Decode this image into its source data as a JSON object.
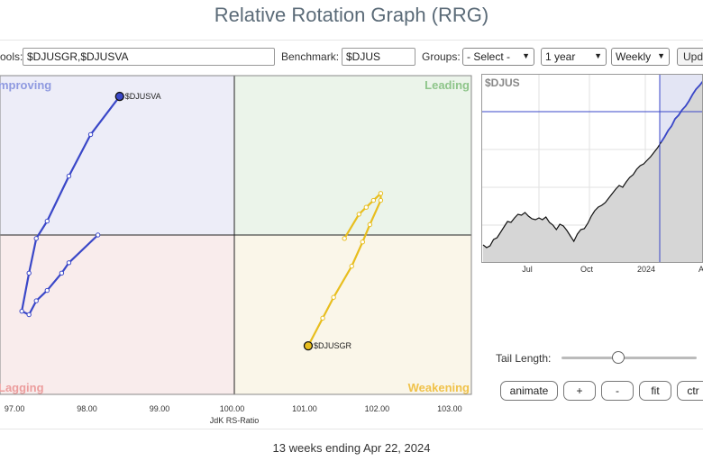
{
  "title": "Relative Rotation Graph (RRG)",
  "toolbar": {
    "symbols_label": "ools:",
    "symbols_value": "$DJUSGR,$DJUSVA",
    "benchmark_label": "Benchmark:",
    "benchmark_value": "$DJUS",
    "groups_label": "Groups:",
    "groups_value": "- Select -",
    "period_value": "1 year",
    "frequency_value": "Weekly",
    "update_label": "Upd"
  },
  "chart_data": [
    {
      "type": "scatter",
      "title": "",
      "xlabel": "JdK RS-Ratio",
      "ylabel": "",
      "xlim": [
        96.8,
        103.3
      ],
      "ylim": [
        97.7,
        102.3
      ],
      "x_ticks": [
        "97.00",
        "98.00",
        "99.00",
        "100.00",
        "101.00",
        "102.00",
        "103.00"
      ],
      "quadrants": {
        "top_left": "mproving",
        "top_right": "Leading",
        "bottom_left": "Lagging",
        "bottom_right": "Weakening"
      },
      "series": [
        {
          "name": "$DJUSVA",
          "color": "#3a47c8",
          "points": [
            [
              98.15,
              100.0
            ],
            [
              97.75,
              99.6
            ],
            [
              97.65,
              99.45
            ],
            [
              97.45,
              99.2
            ],
            [
              97.3,
              99.05
            ],
            [
              97.2,
              98.85
            ],
            [
              97.1,
              98.9
            ],
            [
              97.2,
              99.45
            ],
            [
              97.3,
              99.95
            ],
            [
              97.45,
              100.2
            ],
            [
              97.75,
              100.85
            ],
            [
              98.05,
              101.45
            ],
            [
              98.45,
              102.0
            ]
          ]
        },
        {
          "name": "$DJUSGR",
          "color": "#e8be1e",
          "points": [
            [
              101.55,
              99.95
            ],
            [
              101.75,
              100.3
            ],
            [
              101.85,
              100.4
            ],
            [
              101.95,
              100.5
            ],
            [
              102.05,
              100.6
            ],
            [
              102.05,
              100.5
            ],
            [
              101.9,
              100.15
            ],
            [
              101.8,
              99.9
            ],
            [
              101.65,
              99.55
            ],
            [
              101.4,
              99.1
            ],
            [
              101.25,
              98.8
            ],
            [
              101.05,
              98.4
            ]
          ]
        }
      ]
    },
    {
      "type": "line",
      "title": "$DJUS",
      "x_ticks": [
        "Jul",
        "Oct",
        "2024",
        "A"
      ],
      "series": [
        {
          "name": "$DJUS",
          "values": [
            18,
            15,
            17,
            24,
            26,
            32,
            38,
            44,
            43,
            48,
            52,
            51,
            54,
            50,
            47,
            46,
            48,
            46,
            49,
            43,
            40,
            35,
            41,
            39,
            34,
            28,
            22,
            30,
            35,
            36,
            42,
            50,
            56,
            60,
            62,
            65,
            70,
            75,
            80,
            84,
            82,
            88,
            93,
            96,
            102,
            106,
            108,
            112,
            116,
            121,
            126,
            132,
            138,
            145,
            150,
            158,
            162,
            168,
            172,
            178,
            185,
            191,
            195,
            200
          ]
        }
      ]
    }
  ],
  "controls": {
    "tail_length_label": "Tail Length:",
    "tail_length_value": 0.42,
    "buttons": [
      "animate",
      "+",
      "-",
      "fit",
      "ctr"
    ]
  },
  "footer": "13 weeks ending Apr 22, 2024"
}
